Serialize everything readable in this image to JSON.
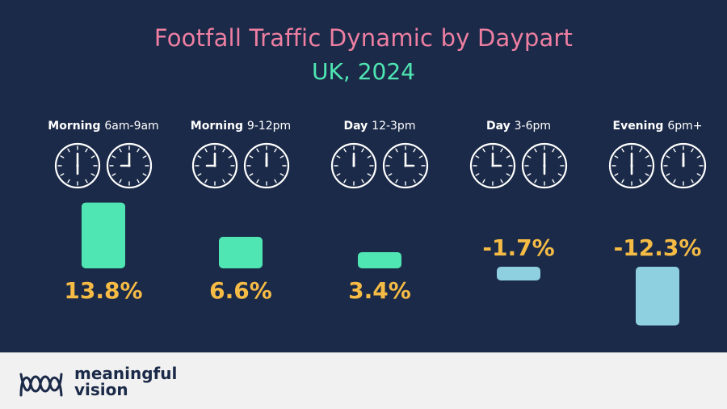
{
  "chart_data": {
    "type": "bar",
    "title": "Footfall Traffic Dynamic by Daypart",
    "subtitle": "UK, 2024",
    "categories": [
      {
        "name": "Morning",
        "range": "6am-9am",
        "clocks": [
          [
            6,
            0
          ],
          [
            9,
            0
          ]
        ]
      },
      {
        "name": "Morning",
        "range": "9-12pm",
        "clocks": [
          [
            9,
            0
          ],
          [
            12,
            0
          ]
        ]
      },
      {
        "name": "Day",
        "range": "12-3pm",
        "clocks": [
          [
            12,
            0
          ],
          [
            3,
            0
          ]
        ]
      },
      {
        "name": "Day",
        "range": "3-6pm",
        "clocks": [
          [
            3,
            0
          ],
          [
            6,
            0
          ]
        ]
      },
      {
        "name": "Evening",
        "range": "6pm+",
        "clocks": [
          [
            6,
            0
          ],
          [
            12,
            0
          ]
        ]
      }
    ],
    "values": [
      13.8,
      6.6,
      3.4,
      -1.7,
      -12.3
    ],
    "value_labels": [
      "13.8%",
      "6.6%",
      "3.4%",
      "-1.7%",
      "-12.3%"
    ],
    "unit": "%",
    "colors": {
      "positive": "#4fe6b3",
      "negative": "#8ecfe0",
      "value_label": "#f5bb45"
    }
  },
  "brand": {
    "logo_icon": "meaningful-vision-logo-icon",
    "line1": "meaningful",
    "line2": "vision"
  }
}
